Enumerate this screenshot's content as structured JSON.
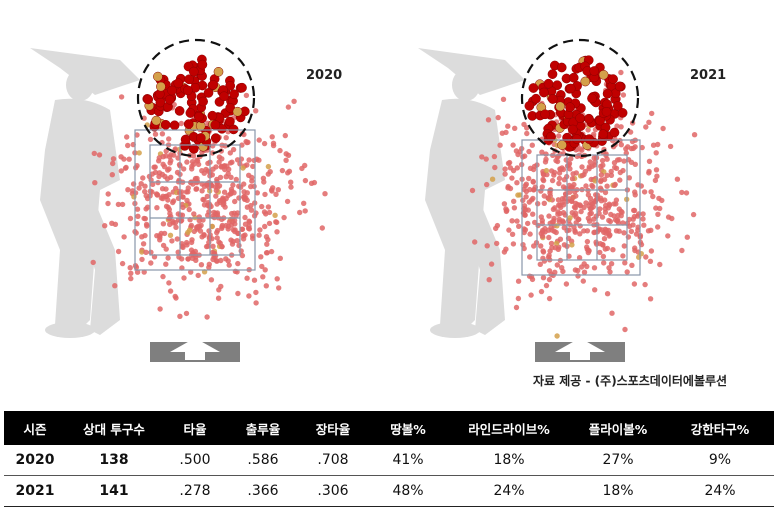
{
  "chart_data": [
    {
      "type": "scatter",
      "title": "2020",
      "description_series": [
        "batted pitch locations"
      ],
      "highlight": "dense cluster above strike zone (high fastballs)"
    },
    {
      "type": "scatter",
      "title": "2021",
      "highlight": "dense cluster above strike zone (high fastballs)"
    }
  ],
  "charts": {
    "left_year": "2020",
    "right_year": "2021"
  },
  "credit": "자료 제공 - (주)스포츠데이터에볼루션",
  "table": {
    "headers": [
      "시즌",
      "상대 투구수",
      "타율",
      "출루율",
      "장타율",
      "땅볼%",
      "라인드라이브%",
      "플라이볼%",
      "강한타구%"
    ],
    "rows": [
      [
        "2020",
        "138",
        ".500",
        ".586",
        ".708",
        "41%",
        "18%",
        "27%",
        "9%"
      ],
      [
        "2021",
        "141",
        ".278",
        ".366",
        ".306",
        "48%",
        "24%",
        "18%",
        "24%"
      ]
    ]
  },
  "colors": {
    "dot": "#e06666",
    "cluster_dot": "#c00000",
    "ball_dot": "#d4a04a",
    "zone_line": "#7f8fa6",
    "batter": "#d9d9d9",
    "plate": "#808080"
  }
}
